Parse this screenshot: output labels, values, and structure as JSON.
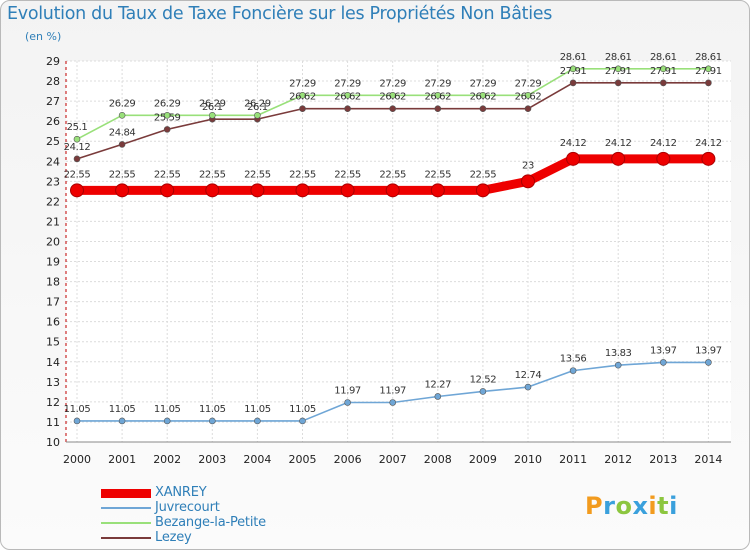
{
  "title": "Evolution du Taux de Taxe Foncière sur les Propriétés Non Bâties",
  "unit_label": "(en %)",
  "chart_data": {
    "type": "line",
    "x": [
      "2000",
      "2001",
      "2002",
      "2003",
      "2004",
      "2005",
      "2006",
      "2007",
      "2008",
      "2009",
      "2010",
      "2011",
      "2012",
      "2013",
      "2014"
    ],
    "ylim": [
      10,
      29
    ],
    "yticks": [
      10,
      11,
      12,
      13,
      14,
      15,
      16,
      17,
      18,
      19,
      20,
      21,
      22,
      23,
      24,
      25,
      26,
      27,
      28,
      29
    ],
    "grid": true,
    "series": [
      {
        "name": "XANREY",
        "color": "#ee0000",
        "values": [
          22.55,
          22.55,
          22.55,
          22.55,
          22.55,
          22.55,
          22.55,
          22.55,
          22.55,
          22.55,
          23,
          24.12,
          24.12,
          24.12,
          24.12
        ],
        "labels": [
          "22.55",
          "22.55",
          "22.55",
          "22.55",
          "22.55",
          "22.55",
          "22.55",
          "22.55",
          "22.55",
          "22.55",
          "23",
          "24.12",
          "24.12",
          "24.12",
          "24.12"
        ]
      },
      {
        "name": "Juvrecourt",
        "color": "#6fa6d6",
        "values": [
          11.05,
          11.05,
          11.05,
          11.05,
          11.05,
          11.05,
          11.97,
          11.97,
          12.27,
          12.52,
          12.74,
          13.56,
          13.83,
          13.97,
          13.97
        ],
        "labels": [
          "11.05",
          "11.05",
          "11.05",
          "11.05",
          "11.05",
          "11.05",
          "11.97",
          "11.97",
          "12.27",
          "12.52",
          "12.74",
          "13.56",
          "13.83",
          "13.97",
          "13.97"
        ]
      },
      {
        "name": "Bezange-la-Petite",
        "color": "#99e07a",
        "values": [
          25.1,
          26.29,
          26.29,
          26.29,
          26.29,
          27.29,
          27.29,
          27.29,
          27.29,
          27.29,
          27.29,
          28.61,
          28.61,
          28.61,
          28.61
        ],
        "labels": [
          "25.1",
          "26.29",
          "26.29",
          "26.29",
          "26.29",
          "27.29",
          "27.29",
          "27.29",
          "27.29",
          "27.29",
          "27.29",
          "28.61",
          "28.61",
          "28.61",
          "28.61"
        ]
      },
      {
        "name": "Lezey",
        "color": "#7a3b3b",
        "values": [
          24.12,
          24.84,
          25.59,
          26.1,
          26.1,
          26.62,
          26.62,
          26.62,
          26.62,
          26.62,
          26.62,
          27.91,
          27.91,
          27.91,
          27.91
        ],
        "labels": [
          "24.12",
          "24.84",
          "25.59",
          "26.1",
          "26.1",
          "26.62",
          "26.62",
          "26.62",
          "26.62",
          "26.62",
          "26.62",
          "27.91",
          "27.91",
          "27.91",
          "27.91"
        ]
      }
    ]
  },
  "legend": {
    "items": [
      {
        "label": "XANREY",
        "color": "#ee0000"
      },
      {
        "label": "Juvrecourt",
        "color": "#6fa6d6"
      },
      {
        "label": "Bezange-la-Petite",
        "color": "#99e07a"
      },
      {
        "label": "Lezey",
        "color": "#7a3b3b"
      }
    ]
  },
  "logo": {
    "letters": [
      "P",
      "r",
      "o",
      "x",
      "i",
      "t",
      "i"
    ],
    "colors": [
      "#f29b1e",
      "#3aa0dc",
      "#8cc63f",
      "#3aa0dc",
      "#f29b1e",
      "#8cc63f",
      "#3aa0dc"
    ]
  }
}
